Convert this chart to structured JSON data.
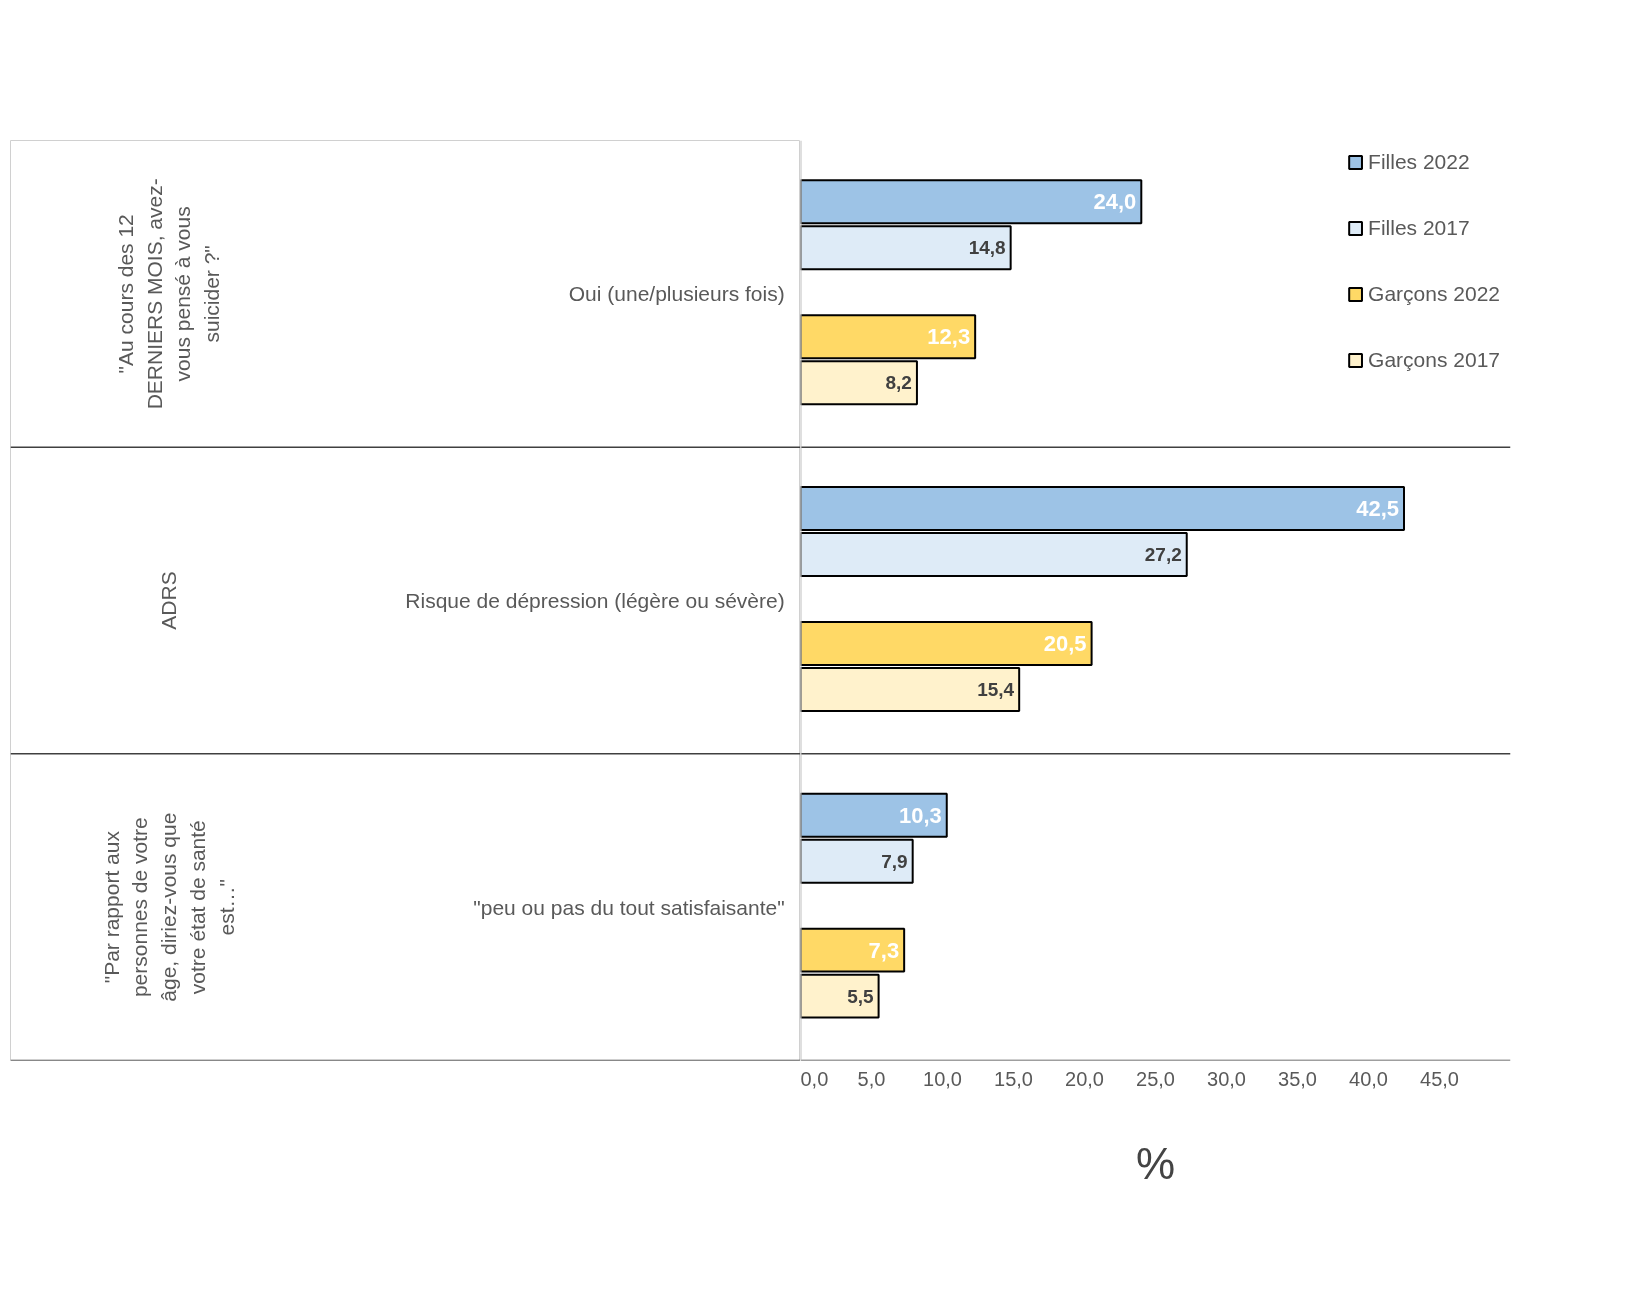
{
  "chart_data": {
    "type": "bar",
    "orientation": "horizontal",
    "xlabel": "%",
    "categories": [
      "Oui (une/plusieurs fois)",
      "Risque de dépression (légère ou sévère)",
      "\"peu ou pas du tout satisfaisante\""
    ],
    "annotations": [
      "\"Au cours des 12 DERNIERS MOIS, avez-vous pensé à vous suicider ?\"",
      "ADRS",
      "\"Par rapport aux personnes de votre âge, diriez-vous que votre état de santé est…\""
    ],
    "series": [
      {
        "name": "Filles 2022",
        "color": "#9dc3e6",
        "values": [
          24.0,
          42.5,
          10.3
        ],
        "value_labels": [
          "24,0",
          "42,5",
          "10,3"
        ]
      },
      {
        "name": "Filles 2017",
        "color": "#deebf7",
        "values": [
          14.8,
          27.2,
          7.9
        ],
        "value_labels": [
          "14,8",
          "27,2",
          "7,9"
        ]
      },
      {
        "name": "Garçons 2022",
        "color": "#ffd966",
        "values": [
          12.3,
          20.5,
          7.3
        ],
        "value_labels": [
          "12,3",
          "20,5",
          "7,3"
        ]
      },
      {
        "name": "Garçons 2017",
        "color": "#fff2cc",
        "values": [
          8.2,
          15.4,
          5.5
        ],
        "value_labels": [
          "8,2",
          "15,4",
          "5,5"
        ]
      }
    ],
    "xlim": [
      0,
      50
    ],
    "xticks": [
      {
        "value": 0,
        "label": "0,0"
      },
      {
        "value": 5,
        "label": "5,0"
      },
      {
        "value": 10,
        "label": "10,0"
      },
      {
        "value": 15,
        "label": "15,0"
      },
      {
        "value": 20,
        "label": "20,0"
      },
      {
        "value": 25,
        "label": "25,0"
      },
      {
        "value": 30,
        "label": "30,0"
      },
      {
        "value": 35,
        "label": "35,0"
      },
      {
        "value": 40,
        "label": "40,0"
      },
      {
        "value": 45,
        "label": "45,0"
      }
    ],
    "grid": false,
    "legend": "top right"
  }
}
